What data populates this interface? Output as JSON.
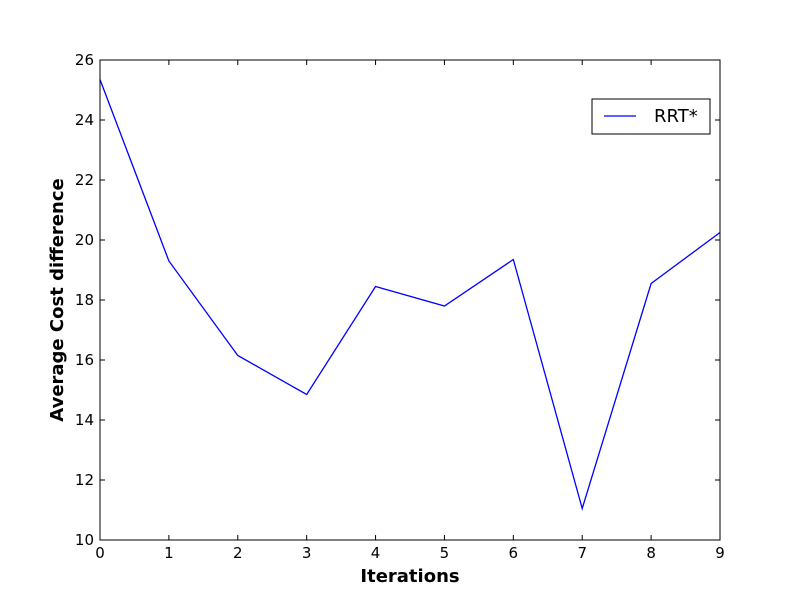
{
  "chart_data": {
    "type": "line",
    "title": "",
    "xlabel": "Iterations",
    "ylabel": "Average Cost difference",
    "xlim": [
      0,
      9
    ],
    "ylim": [
      10,
      26
    ],
    "x_ticks": [
      0,
      1,
      2,
      3,
      4,
      5,
      6,
      7,
      8,
      9
    ],
    "y_ticks": [
      10,
      12,
      14,
      16,
      18,
      20,
      22,
      24,
      26
    ],
    "grid": false,
    "legend_position": "top-right",
    "series": [
      {
        "name": "RRT*",
        "color": "#0000ff",
        "x": [
          0,
          1,
          2,
          3,
          4,
          5,
          6,
          7,
          8,
          9
        ],
        "y": [
          25.35,
          19.3,
          16.15,
          14.85,
          18.45,
          17.8,
          19.35,
          11.05,
          18.55,
          20.25
        ]
      }
    ]
  }
}
